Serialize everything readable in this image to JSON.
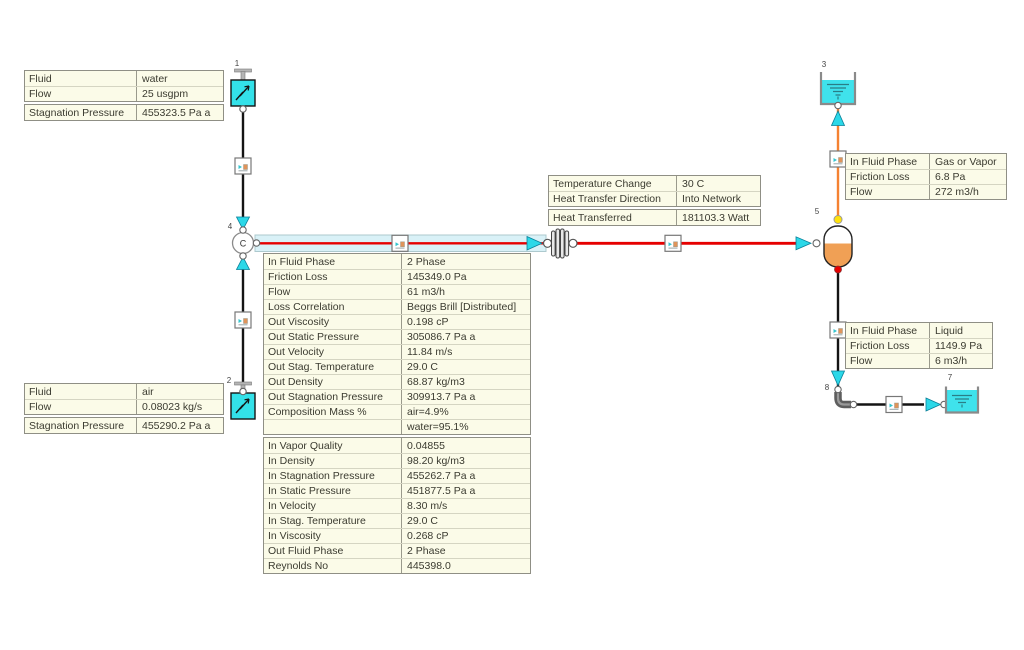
{
  "diagram": {
    "node_labels": {
      "pump_water": "1",
      "pump_air": "2",
      "tank_gas": "3",
      "mixer": "4",
      "separator": "5",
      "tank_liquid": "7",
      "elbow": "8"
    },
    "mixer_letter": "C",
    "colors": {
      "component_cyan": "#33E1E9",
      "flow_arrow_cyan": "#2BD8E8",
      "two_phase_pipe_red": "#E60000",
      "gas_pipe_orange": "#F58232",
      "separator_liquid_orange": "#F0A055",
      "yellow_connector": "#FFE20A",
      "table_background": "#FBFBE8"
    }
  },
  "tables": {
    "water_source": {
      "blocks": [
        [
          {
            "label": "Fluid",
            "value": "water"
          },
          {
            "label": "Flow",
            "value": "25 usgpm"
          }
        ],
        [
          {
            "label": "Stagnation Pressure",
            "value": "455323.5 Pa a"
          }
        ]
      ]
    },
    "air_source": {
      "blocks": [
        [
          {
            "label": "Fluid",
            "value": "air"
          },
          {
            "label": "Flow",
            "value": "0.08023 kg/s"
          }
        ],
        [
          {
            "label": "Stagnation Pressure",
            "value": "455290.2 Pa a"
          }
        ]
      ]
    },
    "heat": {
      "blocks": [
        [
          {
            "label": "Temperature Change",
            "value": "30 C"
          },
          {
            "label": "Heat Transfer Direction",
            "value": "Into Network"
          }
        ],
        [
          {
            "label": "Heat Transferred",
            "value": "181103.3 Watt"
          }
        ]
      ]
    },
    "pipe_results": {
      "blocks": [
        [
          {
            "label": "In Fluid Phase",
            "value": "2 Phase"
          },
          {
            "label": "Friction Loss",
            "value": "145349.0 Pa"
          },
          {
            "label": "Flow",
            "value": "61 m3/h"
          },
          {
            "label": "Loss Correlation",
            "value": "Beggs Brill [Distributed]"
          },
          {
            "label": "Out Viscosity",
            "value": "0.198 cP"
          },
          {
            "label": "Out Static Pressure",
            "value": "305086.7 Pa a"
          },
          {
            "label": "Out Velocity",
            "value": "11.84 m/s"
          },
          {
            "label": "Out Stag. Temperature",
            "value": "29.0 C"
          },
          {
            "label": "Out Density",
            "value": "68.87 kg/m3"
          },
          {
            "label": "Out Stagnation Pressure",
            "value": "309913.7 Pa a"
          },
          {
            "label": "Composition Mass %",
            "value": "air=4.9%"
          },
          {
            "label": "",
            "value": "water=95.1%"
          }
        ],
        [
          {
            "label": "In Vapor Quality",
            "value": "0.04855"
          },
          {
            "label": "In Density",
            "value": "98.20 kg/m3"
          },
          {
            "label": "In Stagnation Pressure",
            "value": "455262.7 Pa a"
          },
          {
            "label": "In Static Pressure",
            "value": "451877.5 Pa a"
          },
          {
            "label": "In Velocity",
            "value": "8.30 m/s"
          },
          {
            "label": "In Stag. Temperature",
            "value": "29.0 C"
          },
          {
            "label": "In Viscosity",
            "value": "0.268 cP"
          },
          {
            "label": "Out Fluid Phase",
            "value": "2 Phase"
          },
          {
            "label": "Reynolds No",
            "value": "445398.0"
          }
        ]
      ]
    },
    "gas_line": {
      "blocks": [
        [
          {
            "label": "In Fluid Phase",
            "value": "Gas or Vapor"
          },
          {
            "label": "Friction Loss",
            "value": "6.8 Pa"
          },
          {
            "label": "Flow",
            "value": "272 m3/h"
          }
        ]
      ]
    },
    "liquid_line": {
      "blocks": [
        [
          {
            "label": "In Fluid Phase",
            "value": "Liquid"
          },
          {
            "label": "Friction Loss",
            "value": "1149.9 Pa"
          },
          {
            "label": "Flow",
            "value": "6 m3/h"
          }
        ]
      ]
    }
  }
}
